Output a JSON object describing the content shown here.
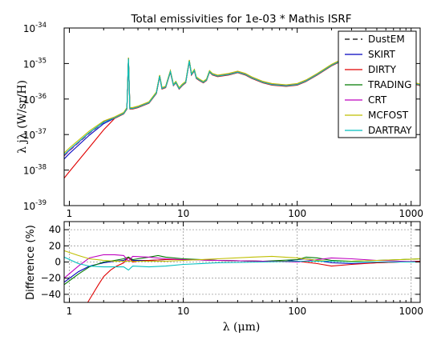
{
  "chart_data": [
    {
      "type": "line",
      "title": "Total emissivities for 1e-03 * Mathis ISRF",
      "xlabel": "λ (μm)",
      "ylabel": "λ jλ (W/sr/H)",
      "xscale": "log",
      "yscale": "log",
      "xlim": [
        0.9,
        1200
      ],
      "ylim": [
        1e-39,
        1e-34
      ],
      "xticks": [
        {
          "value": 1,
          "label": "1"
        },
        {
          "value": 10,
          "label": "10"
        },
        {
          "value": 100,
          "label": "100"
        },
        {
          "value": 1000,
          "label": "1000"
        }
      ],
      "yticks": [
        {
          "value": 1e-39,
          "base": "10",
          "exp": "-39"
        },
        {
          "value": 1e-38,
          "base": "10",
          "exp": "-38"
        },
        {
          "value": 1e-37,
          "base": "10",
          "exp": "-37"
        },
        {
          "value": 1e-36,
          "base": "10",
          "exp": "-36"
        },
        {
          "value": 1e-35,
          "base": "10",
          "exp": "-35"
        },
        {
          "value": 1e-34,
          "base": "10",
          "exp": "-34"
        }
      ],
      "legend_position": "top-right",
      "series": [
        {
          "name": "DustEM",
          "color": "#000000",
          "dash": "6,4"
        },
        {
          "name": "SKIRT",
          "color": "#0000bf"
        },
        {
          "name": "DIRTY",
          "color": "#e00000"
        },
        {
          "name": "TRADING",
          "color": "#007a00"
        },
        {
          "name": "CRT",
          "color": "#bf00bf"
        },
        {
          "name": "MCFOST",
          "color": "#bfbf00"
        },
        {
          "name": "DARTRAY",
          "color": "#00bfbf"
        }
      ],
      "base_curve": {
        "x": [
          0.9,
          1,
          1.5,
          2,
          2.5,
          3,
          3.2,
          3.3,
          3.4,
          3.6,
          4,
          5,
          5.8,
          6.2,
          6.5,
          7,
          7.7,
          8.2,
          8.6,
          9.2,
          9.8,
          10.5,
          11.3,
          11.8,
          12.5,
          13,
          13.8,
          15,
          16,
          17,
          18,
          20,
          25,
          30,
          35,
          40,
          50,
          60,
          80,
          100,
          120,
          150,
          200,
          300,
          500,
          700,
          900,
          1100,
          1200
        ],
        "y": [
          2.5e-38,
          3.5e-38,
          1.1e-37,
          2.2e-37,
          3e-37,
          4e-37,
          5.5e-37,
          1.4e-35,
          5.5e-37,
          5.5e-37,
          6e-37,
          8e-37,
          1.5e-36,
          4.5e-36,
          2e-36,
          2.2e-36,
          6e-36,
          2.5e-36,
          3e-36,
          2e-36,
          2.5e-36,
          3e-36,
          1.2e-35,
          5e-36,
          6.5e-36,
          4e-36,
          3.5e-36,
          3e-36,
          3.5e-36,
          6e-36,
          5e-36,
          4.5e-36,
          5e-36,
          5.8e-36,
          5e-36,
          4e-36,
          3e-36,
          2.6e-36,
          2.4e-36,
          2.6e-36,
          3.3e-36,
          5e-36,
          9e-36,
          1.7e-35,
          1.8e-35,
          9e-36,
          4e-36,
          2.7e-36,
          2.5e-36
        ]
      }
    },
    {
      "type": "line",
      "ylabel": "Difference (%)",
      "xlabel": "λ (μm)",
      "xscale": "log",
      "xlim": [
        0.9,
        1200
      ],
      "ylim": [
        -50,
        50
      ],
      "grid": true,
      "xticks": [
        {
          "value": 1,
          "label": "1"
        },
        {
          "value": 10,
          "label": "10"
        },
        {
          "value": 100,
          "label": "100"
        },
        {
          "value": 1000,
          "label": "1000"
        }
      ],
      "yticks": [
        {
          "value": 40,
          "label": "40"
        },
        {
          "value": 20,
          "label": "20"
        },
        {
          "value": 0,
          "label": "0"
        },
        {
          "value": -20,
          "label": "−20"
        },
        {
          "value": -40,
          "label": "−40"
        }
      ],
      "series": [
        {
          "name": "SKIRT",
          "color": "#0000bf",
          "x": [
            0.9,
            1.2,
            1.5,
            2,
            2.5,
            3,
            3.3,
            3.6,
            5,
            7,
            10,
            20,
            50,
            80,
            100,
            120,
            150,
            200,
            300,
            500,
            800,
            1200
          ],
          "y": [
            -25,
            -12,
            -5,
            -1,
            1,
            2,
            5,
            2,
            2,
            3,
            3,
            2,
            1,
            1,
            3,
            4,
            2,
            -1,
            -2,
            -1,
            0,
            1
          ]
        },
        {
          "name": "DIRTY",
          "color": "#e00000",
          "x": [
            1.45,
            1.6,
            1.8,
            2,
            2.3,
            2.6,
            3,
            3.3,
            3.6,
            4,
            5,
            7,
            10,
            20,
            50,
            100,
            150,
            200,
            300,
            500,
            800,
            1200
          ],
          "y": [
            -50,
            -40,
            -28,
            -18,
            -10,
            -5,
            -1,
            6,
            0,
            1,
            2,
            3,
            3,
            2,
            1,
            1,
            -2,
            -5,
            -3,
            -1,
            0,
            1
          ]
        },
        {
          "name": "TRADING",
          "color": "#007a00",
          "x": [
            0.9,
            1.2,
            1.5,
            2,
            2.5,
            3,
            3.3,
            3.6,
            4,
            5,
            6,
            7,
            10,
            20,
            50,
            100,
            120,
            150,
            200,
            300,
            500,
            800,
            1200
          ],
          "y": [
            -28,
            -15,
            -6,
            0,
            2,
            4,
            6,
            3,
            4,
            6,
            8,
            6,
            4,
            2,
            1,
            3,
            6,
            5,
            2,
            1,
            2,
            3,
            4
          ]
        },
        {
          "name": "CRT",
          "color": "#bf00bf",
          "x": [
            0.9,
            1.2,
            1.5,
            2,
            2.5,
            3,
            3.3,
            3.6,
            5,
            7,
            10,
            20,
            50,
            100,
            150,
            200,
            300,
            500,
            800,
            1200
          ],
          "y": [
            -20,
            -5,
            5,
            9,
            9,
            8,
            1,
            7,
            6,
            4,
            3,
            2,
            1,
            0,
            3,
            5,
            4,
            2,
            1,
            0
          ]
        },
        {
          "name": "MCFOST",
          "color": "#bfbf00",
          "x": [
            0.9,
            1.2,
            1.5,
            2,
            2.5,
            3,
            3.3,
            3.6,
            5,
            7,
            10,
            20,
            40,
            60,
            100,
            150,
            200,
            300,
            500,
            800,
            1200
          ],
          "y": [
            14,
            8,
            4,
            2,
            1,
            1,
            1,
            1,
            1,
            1,
            2,
            4,
            6,
            7,
            5,
            2,
            1,
            1,
            2,
            3,
            4
          ]
        },
        {
          "name": "DARTRAY",
          "color": "#00bfbf",
          "x": [
            0.9,
            1.2,
            1.5,
            2,
            2.5,
            3,
            3.3,
            3.6,
            5,
            7,
            10,
            20,
            50,
            100,
            150,
            200,
            300,
            500,
            800,
            1200
          ],
          "y": [
            6,
            -2,
            -5,
            -6,
            -6,
            -6,
            -10,
            -5,
            -6,
            -5,
            -3,
            -1,
            0,
            1,
            1,
            1,
            0,
            0,
            0,
            0
          ]
        }
      ]
    }
  ]
}
